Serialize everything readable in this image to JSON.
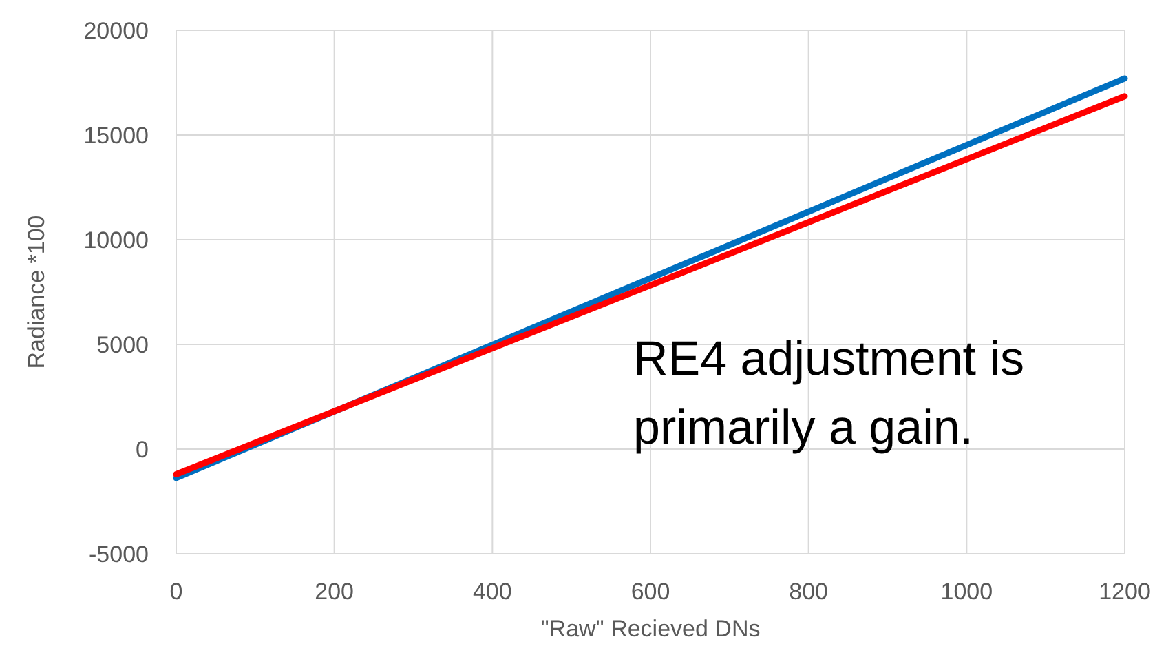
{
  "chart_data": {
    "type": "line",
    "xlabel": "\"Raw\" Recieved DNs",
    "ylabel": "Radiance *100",
    "xlim": [
      0,
      1200
    ],
    "xticks": [
      0,
      200,
      400,
      600,
      800,
      1000,
      1200
    ],
    "ylim": [
      -5000,
      20000
    ],
    "yticks": [
      -5000,
      0,
      5000,
      10000,
      15000,
      20000
    ],
    "grid": true,
    "marker": "none",
    "line_style": "solid",
    "x": [
      0,
      1200
    ],
    "series": [
      {
        "color": "#0070c0",
        "values": [
          -1380,
          17700
        ]
      },
      {
        "color": "#ff0000",
        "values": [
          -1200,
          16850
        ]
      }
    ],
    "annotations": [
      "RE4 adjustment is primarily a gain."
    ]
  }
}
